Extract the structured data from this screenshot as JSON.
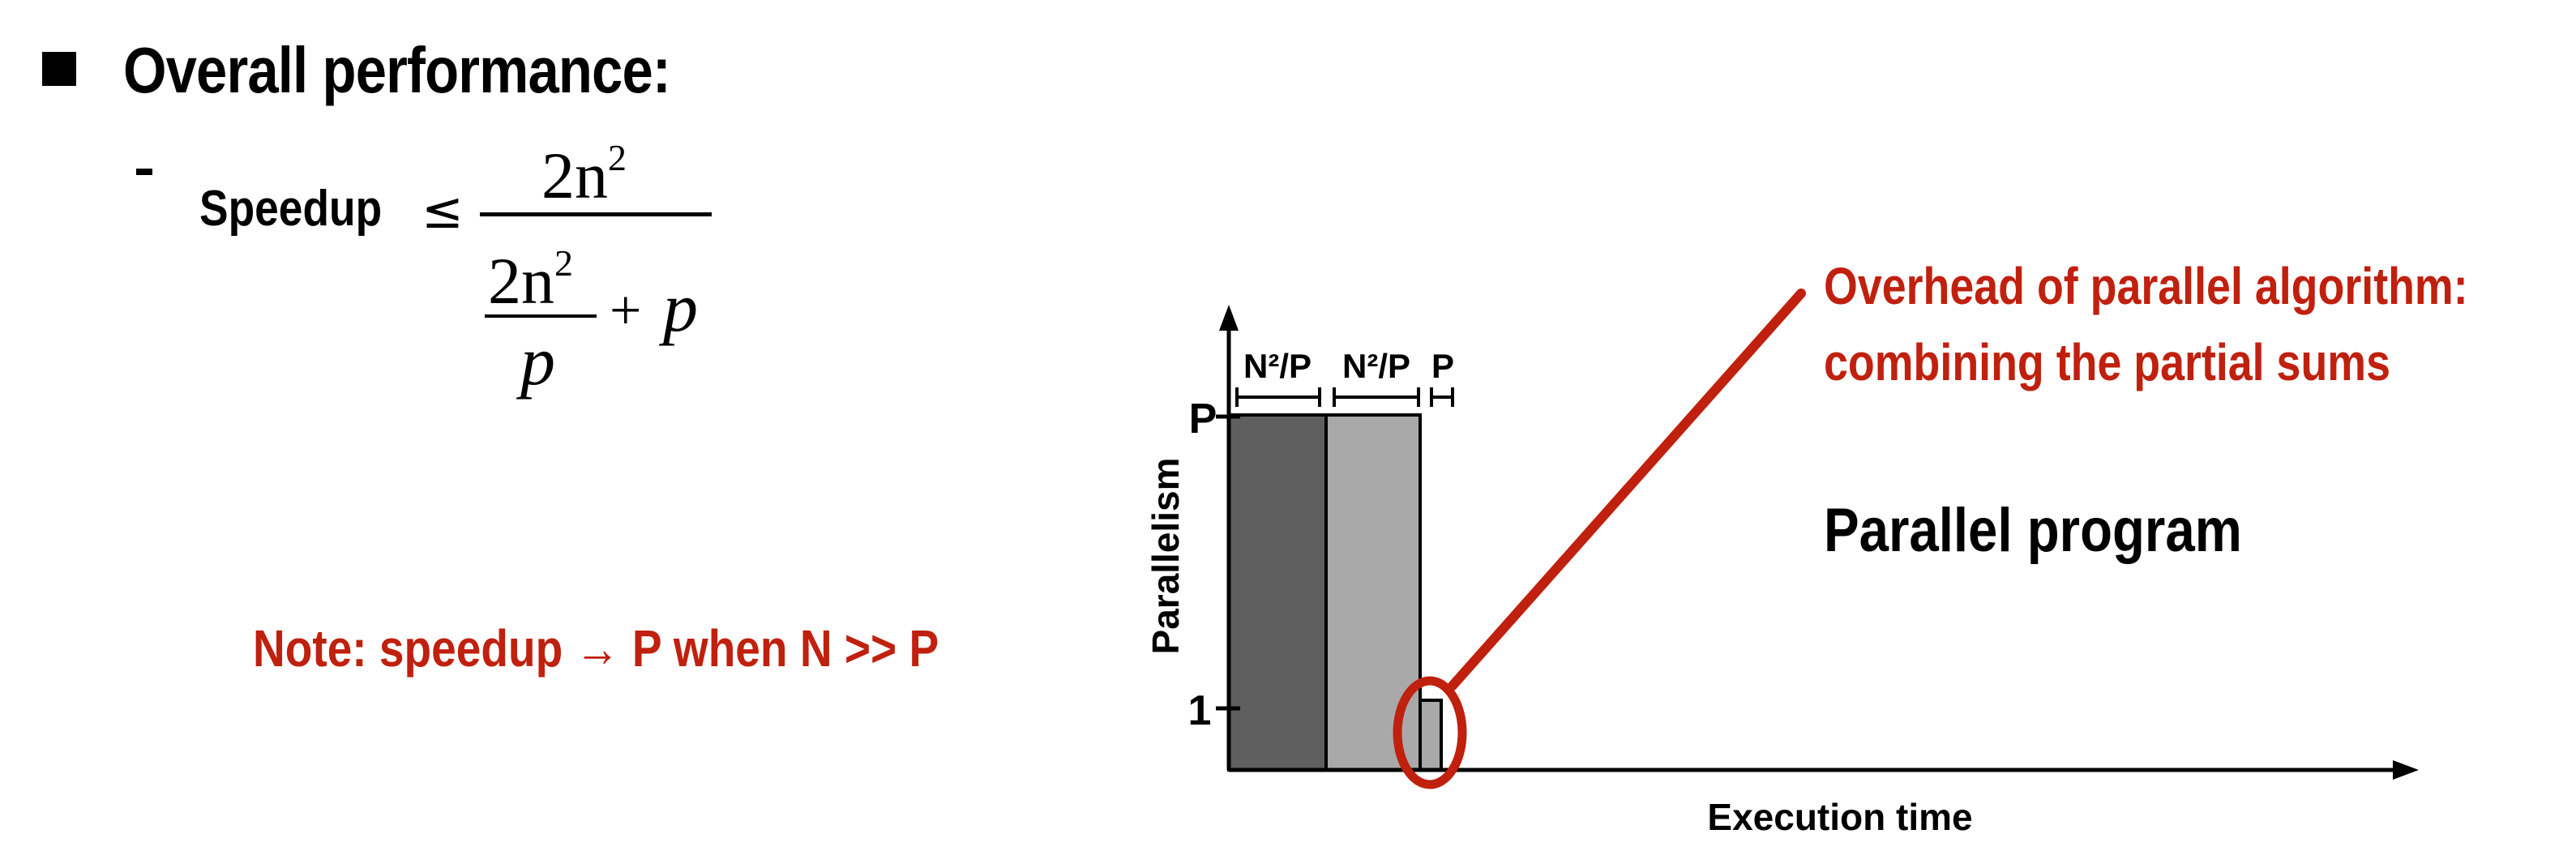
{
  "heading": "Overall performance:",
  "speedup": {
    "label": "Speedup",
    "leq": "≤",
    "numerator": "2n",
    "numerator_exp": "2",
    "denominator_inner_num": "2n",
    "denominator_inner_exp": "2",
    "denominator_inner_den": "p",
    "plus": "+",
    "p_term": "p"
  },
  "note": "Note: speedup → P when N >> P",
  "diagram": {
    "segment_labels": [
      "N²/P",
      "N²/P",
      "P"
    ],
    "y_tick_P": "P",
    "y_tick_1": "1",
    "y_axis_label": "Parallelism",
    "x_axis_label": "Execution time",
    "callout_line1": "Overhead of parallel algorithm:",
    "callout_line2": "combining the partial sums",
    "caption": "Parallel program",
    "colors": {
      "dark_bar": "#5f5f5f",
      "light_bar": "#a9a9a9",
      "small_bar": "#a9a9a9",
      "accent": "#c0200e"
    }
  }
}
